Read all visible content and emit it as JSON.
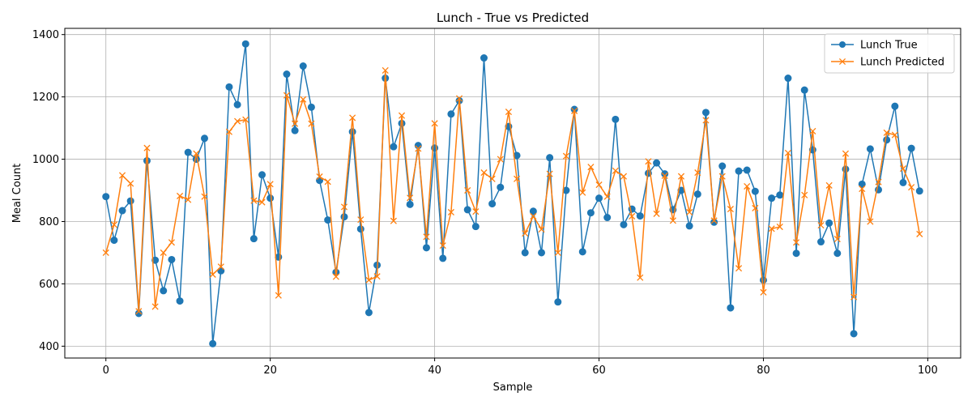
{
  "chart_data": {
    "type": "line",
    "title": "Lunch - True vs Predicted",
    "xlabel": "Sample",
    "ylabel": "Meal Count",
    "xlim": [
      -5,
      104
    ],
    "ylim": [
      362,
      1420
    ],
    "x_ticks": [
      0,
      20,
      40,
      60,
      80,
      100
    ],
    "y_ticks": [
      400,
      600,
      800,
      1000,
      1200,
      1400
    ],
    "grid": true,
    "legend_position": "top-right",
    "series": [
      {
        "name": "Lunch True",
        "color": "#1f77b4",
        "marker": "circle",
        "values": [
          880,
          740,
          835,
          866,
          505,
          995,
          676,
          578,
          678,
          545,
          1022,
          1000,
          1067,
          408,
          642,
          1232,
          1175,
          1370,
          745,
          950,
          875,
          686,
          1273,
          1092,
          1299,
          1167,
          932,
          805,
          637,
          815,
          1088,
          776,
          508,
          660,
          1260,
          1040,
          1115,
          855,
          1044,
          716,
          1036,
          682,
          1145,
          1188,
          838,
          784,
          1325,
          857,
          910,
          1105,
          1012,
          700,
          833,
          700,
          1005,
          542,
          900,
          1160,
          703,
          828,
          875,
          813,
          1128,
          790,
          840,
          818,
          955,
          988,
          953,
          838,
          900,
          786,
          888,
          1150,
          798,
          978,
          523,
          962,
          965,
          897,
          612,
          875,
          885,
          1260,
          698,
          1222,
          1030,
          735,
          795,
          698,
          968,
          440,
          920,
          1033,
          902,
          1062,
          1170,
          925,
          1035,
          898
        ]
      },
      {
        "name": "Lunch Predicted",
        "color": "#ff7f0e",
        "marker": "x",
        "values": [
          700,
          790,
          948,
          922,
          512,
          1036,
          527,
          700,
          733,
          882,
          870,
          1018,
          880,
          630,
          655,
          1088,
          1122,
          1127,
          867,
          862,
          920,
          563,
          1205,
          1114,
          1192,
          1114,
          944,
          928,
          623,
          847,
          1133,
          806,
          612,
          624,
          1285,
          802,
          1140,
          876,
          1034,
          751,
          1115,
          723,
          830,
          1195,
          900,
          832,
          957,
          937,
          1000,
          1152,
          937,
          762,
          817,
          775,
          953,
          700,
          1010,
          1155,
          893,
          975,
          918,
          880,
          963,
          945,
          817,
          620,
          993,
          825,
          947,
          803,
          945,
          830,
          957,
          1125,
          803,
          945,
          840,
          650,
          913,
          843,
          573,
          777,
          783,
          1020,
          733,
          885,
          1090,
          788,
          916,
          744,
          1018,
          558,
          905,
          800,
          927,
          1085,
          1078,
          970,
          910,
          760
        ]
      }
    ]
  }
}
